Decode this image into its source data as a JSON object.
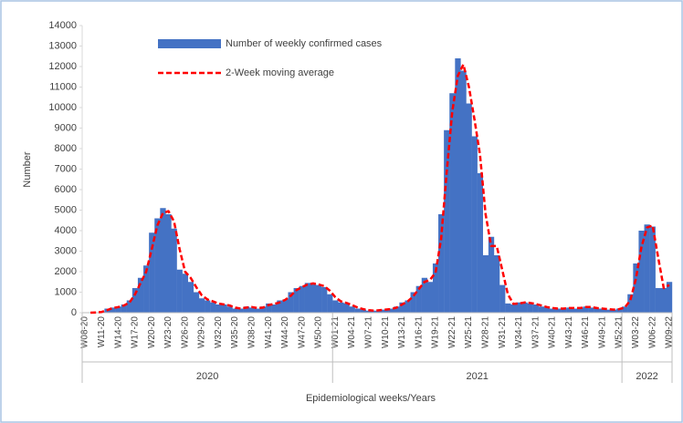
{
  "chart_data": {
    "type": "bar_line",
    "x_label": "Epidemiological weeks/Years",
    "y_label": "Number",
    "categories": [
      "W08-20",
      null,
      null,
      "W11-20",
      null,
      null,
      "W14-20",
      null,
      null,
      "W17-20",
      null,
      null,
      "W20-20",
      null,
      null,
      "W23-20",
      null,
      null,
      "W26-20",
      null,
      null,
      "W29-20",
      null,
      null,
      "W32-20",
      null,
      null,
      "W35-20",
      null,
      null,
      "W38-20",
      null,
      null,
      "W41-20",
      null,
      null,
      "W44-20",
      null,
      null,
      "W47-20",
      null,
      null,
      "W50-20",
      null,
      null,
      "W01-21",
      null,
      null,
      "W04-21",
      null,
      null,
      "W07-21",
      null,
      null,
      "W10-21",
      null,
      null,
      "W13-21",
      null,
      null,
      "W16-21",
      null,
      null,
      "W19-21",
      null,
      null,
      "W22-21",
      null,
      null,
      "W25-21",
      null,
      null,
      "W28-21",
      null,
      null,
      "W31-21",
      null,
      null,
      "W34-21",
      null,
      null,
      "W37-21",
      null,
      null,
      "W40-21",
      null,
      null,
      "W43-21",
      null,
      null,
      "W46-21",
      null,
      null,
      "W49-21",
      null,
      null,
      "W52-21",
      null,
      null,
      "W03-22",
      null,
      null,
      "W06-22",
      null,
      null,
      "W09-22"
    ],
    "x_groups": [
      {
        "label": "2020",
        "span": 45
      },
      {
        "label": "2021",
        "span": 52
      },
      {
        "label": "2022",
        "span": 9
      }
    ],
    "series": [
      {
        "name": "Number of weekly confirmed cases",
        "type": "bar",
        "color": "#4472c4",
        "values": [
          0,
          0,
          20,
          50,
          200,
          250,
          300,
          400,
          600,
          1200,
          1700,
          2300,
          3900,
          4600,
          5100,
          4800,
          4100,
          2100,
          1900,
          1500,
          1000,
          700,
          600,
          500,
          400,
          400,
          300,
          200,
          200,
          300,
          250,
          200,
          300,
          450,
          400,
          600,
          650,
          1000,
          1200,
          1300,
          1450,
          1400,
          1350,
          1250,
          900,
          600,
          500,
          450,
          300,
          200,
          150,
          100,
          100,
          150,
          150,
          200,
          300,
          500,
          600,
          1000,
          1300,
          1700,
          1500,
          2400,
          4800,
          8900,
          10700,
          12400,
          11800,
          10200,
          8600,
          6800,
          2800,
          3700,
          2800,
          1350,
          450,
          400,
          500,
          500,
          450,
          400,
          300,
          250,
          200,
          200,
          200,
          250,
          200,
          250,
          300,
          250,
          200,
          200,
          150,
          150,
          200,
          300,
          900,
          2400,
          4000,
          4300,
          4200,
          1200,
          1200,
          1500
        ]
      },
      {
        "name": "2-Week moving average",
        "type": "line",
        "color": "#ff0000",
        "values": [
          null,
          0,
          10,
          35,
          125,
          225,
          275,
          350,
          500,
          900,
          1450,
          2000,
          3100,
          4250,
          4850,
          4950,
          4450,
          3100,
          2000,
          1700,
          1250,
          850,
          650,
          550,
          450,
          400,
          350,
          250,
          200,
          250,
          275,
          225,
          250,
          375,
          425,
          500,
          625,
          825,
          1100,
          1250,
          1375,
          1425,
          1375,
          1300,
          1075,
          750,
          550,
          475,
          375,
          250,
          175,
          125,
          100,
          125,
          150,
          175,
          250,
          400,
          550,
          800,
          1150,
          1500,
          1600,
          1950,
          3600,
          6850,
          9800,
          11550,
          12100,
          11000,
          9400,
          7700,
          4800,
          3250,
          3250,
          2075,
          900,
          425,
          450,
          500,
          475,
          425,
          350,
          275,
          225,
          200,
          200,
          225,
          225,
          225,
          275,
          275,
          225,
          200,
          175,
          150,
          175,
          250,
          600,
          1650,
          3200,
          4150,
          4250,
          2700,
          1200,
          1350
        ]
      }
    ],
    "ylim": [
      0,
      14000
    ],
    "yticks": [
      0,
      1000,
      2000,
      3000,
      4000,
      5000,
      6000,
      7000,
      8000,
      9000,
      10000,
      11000,
      12000,
      13000,
      14000
    ],
    "grid": false
  }
}
